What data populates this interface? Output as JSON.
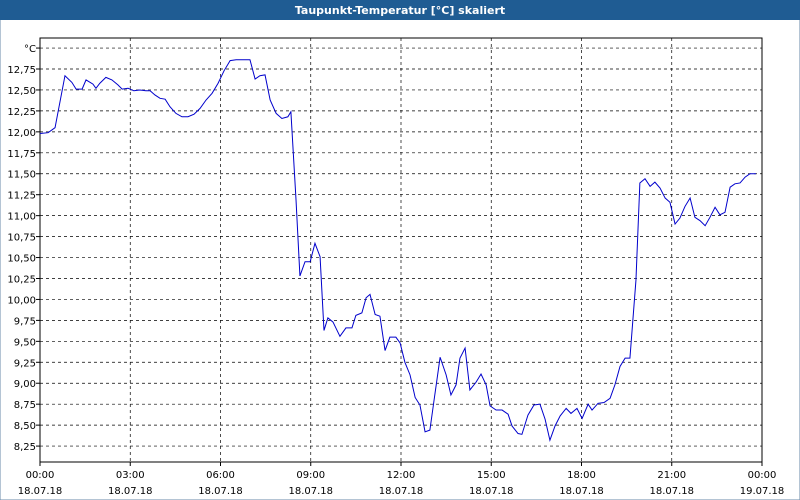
{
  "chart_data": {
    "type": "line",
    "title": "Taupunkt-Temperatur [°C] skaliert",
    "color": "#0000cc",
    "grid": true,
    "xlim": [
      0,
      24
    ],
    "xticks": [
      {
        "value": 0,
        "label": "00:00\n18.07.18"
      },
      {
        "value": 3,
        "label": "03:00\n18.07.18"
      },
      {
        "value": 6,
        "label": "06:00\n18.07.18"
      },
      {
        "value": 9,
        "label": "09:00\n18.07.18"
      },
      {
        "value": 12,
        "label": "12:00\n18.07.18"
      },
      {
        "value": 15,
        "label": "15:00\n18.07.18"
      },
      {
        "value": 18,
        "label": "18:00\n18.07.18"
      },
      {
        "value": 21,
        "label": "21:00\n18.07.18"
      },
      {
        "value": 24,
        "label": "00:00\n19.07.18"
      }
    ],
    "ylim": [
      8.06,
      13.12
    ],
    "yticks": [
      {
        "value": 8.25,
        "label": "8,25"
      },
      {
        "value": 8.5,
        "label": "8,50"
      },
      {
        "value": 8.75,
        "label": "8,75"
      },
      {
        "value": 9,
        "label": "9,00"
      },
      {
        "value": 9.25,
        "label": "9,25"
      },
      {
        "value": 9.5,
        "label": "9,50"
      },
      {
        "value": 9.75,
        "label": "9,75"
      },
      {
        "value": 10,
        "label": "10,00"
      },
      {
        "value": 10.25,
        "label": "10,25"
      },
      {
        "value": 10.5,
        "label": "10,50"
      },
      {
        "value": 10.75,
        "label": "10,75"
      },
      {
        "value": 11,
        "label": "11,00"
      },
      {
        "value": 11.25,
        "label": "11,25"
      },
      {
        "value": 11.5,
        "label": "11,50"
      },
      {
        "value": 11.75,
        "label": "11,75"
      },
      {
        "value": 12,
        "label": "12,00"
      },
      {
        "value": 12.25,
        "label": "12,25"
      },
      {
        "value": 12.5,
        "label": "12,50"
      },
      {
        "value": 12.75,
        "label": "12,75"
      },
      {
        "value": 13,
        "label": "°C"
      }
    ],
    "x": [
      0,
      0.27,
      0.5,
      0.83,
      1.06,
      1.2,
      1.4,
      1.53,
      1.76,
      1.86,
      1.99,
      2.19,
      2.39,
      2.59,
      2.73,
      2.93,
      3.12,
      3.32,
      3.52,
      3.66,
      3.82,
      3.99,
      4.16,
      4.32,
      4.52,
      4.72,
      4.92,
      5.12,
      5.32,
      5.52,
      5.72,
      5.92,
      6.12,
      6.32,
      6.52,
      6.71,
      6.98,
      7.15,
      7.31,
      7.48,
      7.65,
      7.85,
      8.04,
      8.24,
      8.34,
      8.51,
      8.64,
      8.81,
      8.98,
      9.14,
      9.31,
      9.44,
      9.57,
      9.74,
      9.97,
      10.17,
      10.37,
      10.5,
      10.7,
      10.84,
      10.97,
      11.14,
      11.3,
      11.47,
      11.63,
      11.83,
      11.97,
      12.13,
      12.3,
      12.47,
      12.63,
      12.8,
      12.96,
      13.1,
      13.3,
      13.5,
      13.66,
      13.83,
      13.96,
      14.13,
      14.29,
      14.49,
      14.66,
      14.83,
      14.96,
      15.16,
      15.36,
      15.56,
      15.69,
      15.89,
      16.02,
      16.22,
      16.42,
      16.62,
      16.79,
      16.95,
      17.12,
      17.29,
      17.49,
      17.65,
      17.85,
      18.02,
      18.22,
      18.35,
      18.55,
      18.75,
      18.95,
      19.11,
      19.28,
      19.45,
      19.61,
      19.81,
      19.94,
      20.11,
      20.28,
      20.44,
      20.61,
      20.78,
      20.94,
      21.11,
      21.27,
      21.44,
      21.61,
      21.77,
      21.94,
      22.11,
      22.27,
      22.44,
      22.6,
      22.77,
      22.94,
      23.1,
      23.27,
      23.44,
      23.6,
      23.8
    ],
    "values": [
      11.98,
      11.99,
      12.05,
      12.67,
      12.59,
      12.51,
      12.51,
      12.62,
      12.57,
      12.52,
      12.58,
      12.65,
      12.62,
      12.56,
      12.51,
      12.52,
      12.49,
      12.5,
      12.49,
      12.49,
      12.44,
      12.4,
      12.39,
      12.3,
      12.22,
      12.18,
      12.18,
      12.21,
      12.28,
      12.38,
      12.46,
      12.58,
      12.73,
      12.85,
      12.86,
      12.86,
      12.86,
      12.63,
      12.67,
      12.68,
      12.38,
      12.22,
      12.16,
      12.18,
      12.24,
      11.19,
      10.28,
      10.45,
      10.45,
      10.67,
      10.51,
      9.63,
      9.78,
      9.73,
      9.56,
      9.66,
      9.66,
      9.81,
      9.84,
      10.02,
      10.06,
      9.82,
      9.8,
      9.39,
      9.55,
      9.55,
      9.48,
      9.25,
      9.1,
      8.83,
      8.74,
      8.42,
      8.44,
      8.8,
      9.31,
      9.1,
      8.86,
      8.98,
      9.3,
      9.42,
      8.92,
      9.01,
      9.11,
      8.98,
      8.73,
      8.68,
      8.68,
      8.63,
      8.49,
      8.4,
      8.39,
      8.62,
      8.74,
      8.75,
      8.57,
      8.32,
      8.49,
      8.61,
      8.7,
      8.64,
      8.7,
      8.58,
      8.75,
      8.68,
      8.76,
      8.77,
      8.82,
      8.98,
      9.2,
      9.3,
      9.3,
      10.23,
      11.39,
      11.44,
      11.35,
      11.4,
      11.33,
      11.21,
      11.16,
      10.9,
      10.97,
      11.11,
      11.21,
      10.98,
      10.94,
      10.88,
      10.98,
      11.1,
      11.01,
      11.04,
      11.34,
      11.38,
      11.39,
      11.46,
      11.5,
      11.5
    ]
  }
}
